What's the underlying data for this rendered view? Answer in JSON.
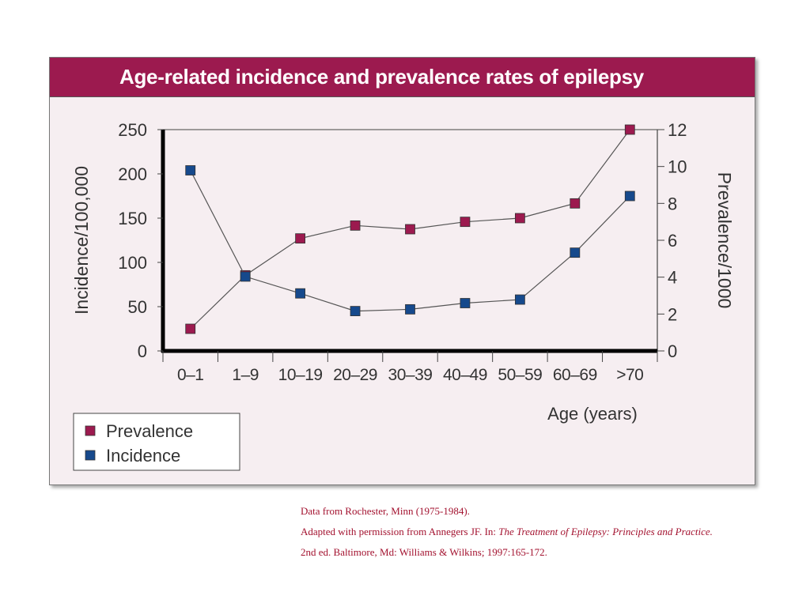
{
  "chart_data": {
    "type": "line",
    "title": "Age-related incidence and prevalence rates of epilepsy",
    "xlabel": "Age (years)",
    "ylabel_left": "Incidence/100,000",
    "ylabel_right": "Prevalence/1000",
    "categories": [
      "0–1",
      "1–9",
      "10–19",
      "20–29",
      "30–39",
      "40–49",
      "50–59",
      "60–69",
      ">70"
    ],
    "ylim_left": [
      0,
      250
    ],
    "ylim_right": [
      0,
      12
    ],
    "yticks_left": [
      "0",
      "50",
      "100",
      "150",
      "200",
      "250"
    ],
    "yticks_right": [
      "0",
      "2",
      "4",
      "6",
      "8",
      "10",
      "12"
    ],
    "series": [
      {
        "name": "Prevalence",
        "axis": "right",
        "color": "#9c1a4f",
        "values": [
          1.2,
          4.1,
          6.1,
          6.8,
          6.6,
          7.0,
          7.2,
          8.0,
          12.0
        ]
      },
      {
        "name": "Incidence",
        "axis": "left",
        "color": "#16498c",
        "values": [
          204,
          84,
          65,
          45,
          47,
          54,
          58,
          111,
          175
        ]
      }
    ],
    "legend": [
      "Prevalence",
      "Incidence"
    ],
    "legend_position": "bottom-left"
  },
  "citation": {
    "line1": "Data from Rochester, Minn (1975-1984).",
    "line2_prefix": "Adapted with permission from Annegers JF. In: ",
    "line2_title": "The Treatment of Epilepsy: Principles and Practice.",
    "line3": "2nd ed. Baltimore, Md: Williams & Wilkins; 1997:165-172."
  }
}
